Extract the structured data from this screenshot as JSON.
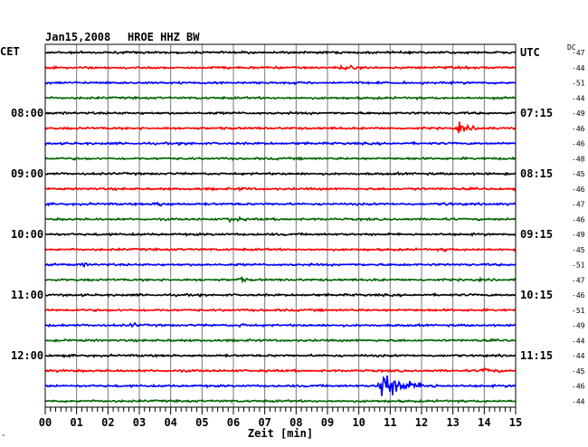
{
  "chart_data": {
    "type": "line",
    "title": "Jan15,2008",
    "subtitle": "HROE HHZ BW",
    "left_axis_label": "CET",
    "right_axis_label": "UTC",
    "dc_label": "DC",
    "xlabel": "Zeit [min]",
    "xlim": [
      0,
      15
    ],
    "x_ticks": [
      "00",
      "01",
      "02",
      "03",
      "04",
      "05",
      "06",
      "07",
      "08",
      "09",
      "10",
      "11",
      "12",
      "13",
      "14",
      "15"
    ],
    "grid": true,
    "left_time_labels": [
      {
        "row": 4,
        "text": "08:00"
      },
      {
        "row": 8,
        "text": "09:00"
      },
      {
        "row": 12,
        "text": "10:00"
      },
      {
        "row": 16,
        "text": "11:00"
      },
      {
        "row": 20,
        "text": "12:00"
      }
    ],
    "right_time_labels": [
      {
        "row": 0,
        "text": "UTC"
      },
      {
        "row": 4,
        "text": "07:15"
      },
      {
        "row": 8,
        "text": "08:15"
      },
      {
        "row": 12,
        "text": "09:15"
      },
      {
        "row": 16,
        "text": "10:15"
      },
      {
        "row": 20,
        "text": "11:15"
      }
    ],
    "trace_colors": [
      "#000000",
      "#ff0000",
      "#0000ff",
      "#006400"
    ],
    "dc_values": [
      -47,
      -44,
      -51,
      -44,
      -49,
      -46,
      -46,
      -48,
      -45,
      -46,
      -47,
      -46,
      -49,
      -45,
      -51,
      -47,
      -46,
      -51,
      -49,
      -44,
      -44,
      -45,
      -46,
      -44
    ],
    "events": [
      {
        "row": 1,
        "minute": 9.5,
        "amplitude": 0.35,
        "duration": 0.6
      },
      {
        "row": 5,
        "minute": 13.2,
        "amplitude": 0.45,
        "duration": 1.0
      },
      {
        "row": 6,
        "minute": 4.6,
        "amplitude": 0.15,
        "duration": 0.3
      },
      {
        "row": 9,
        "minute": 6.3,
        "amplitude": 0.15,
        "duration": 0.3
      },
      {
        "row": 9,
        "minute": 11.8,
        "amplitude": 0.15,
        "duration": 0.3
      },
      {
        "row": 10,
        "minute": 3.6,
        "amplitude": 0.3,
        "duration": 0.5
      },
      {
        "row": 10,
        "minute": 12.8,
        "amplitude": 0.2,
        "duration": 0.3
      },
      {
        "row": 11,
        "minute": 5.9,
        "amplitude": 0.35,
        "duration": 0.6
      },
      {
        "row": 13,
        "minute": 12.8,
        "amplitude": 0.15,
        "duration": 0.3
      },
      {
        "row": 14,
        "minute": 1.2,
        "amplitude": 0.15,
        "duration": 0.3
      },
      {
        "row": 15,
        "minute": 6.2,
        "amplitude": 0.25,
        "duration": 0.4
      },
      {
        "row": 18,
        "minute": 2.8,
        "amplitude": 0.25,
        "duration": 0.3
      },
      {
        "row": 18,
        "minute": 6.3,
        "amplitude": 0.15,
        "duration": 0.3
      },
      {
        "row": 21,
        "minute": 14.0,
        "amplitude": 0.3,
        "duration": 0.6
      },
      {
        "row": 22,
        "minute": 10.7,
        "amplitude": 1.9,
        "duration": 1.8
      }
    ]
  }
}
